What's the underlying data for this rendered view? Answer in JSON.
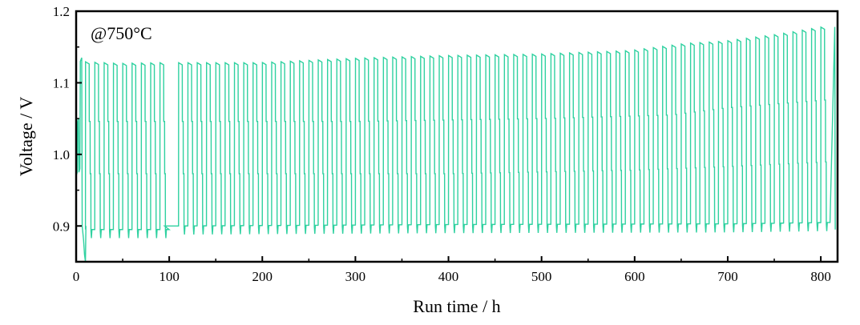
{
  "chart_data": {
    "type": "line",
    "title": "",
    "xlabel": "Run time / h",
    "ylabel": "Voltage / V",
    "annotation": "@750°C",
    "xlim": [
      0,
      818
    ],
    "ylim": [
      0.85,
      1.2
    ],
    "xticks": [
      0,
      100,
      200,
      300,
      400,
      500,
      600,
      700,
      800
    ],
    "yticks": [
      0.9,
      1.0,
      1.1,
      1.2
    ],
    "ytick_labels": [
      "0.9",
      "1.0",
      "1.1",
      "1.2"
    ],
    "grid": false,
    "legend": "none",
    "color": "#2fd1a0",
    "cycle_period_h": 10,
    "series": [
      {
        "description_upper": "electrolysis plateau (high voltage)",
        "upper_x": [
          5,
          50,
          95,
          110,
          200,
          300,
          400,
          500,
          600,
          630,
          660,
          700,
          760,
          815
        ],
        "upper_y": [
          1.13,
          1.127,
          1.128,
          1.128,
          1.128,
          1.134,
          1.138,
          1.14,
          1.145,
          1.15,
          1.155,
          1.158,
          1.168,
          1.18
        ],
        "mid_high_x": [
          10,
          100,
          110,
          300,
          500,
          640,
          700,
          815
        ],
        "mid_high_y": [
          1.046,
          1.046,
          1.046,
          1.046,
          1.05,
          1.055,
          1.065,
          1.077
        ],
        "mid_low_x": [
          10,
          100,
          110,
          400,
          600,
          700,
          815
        ],
        "mid_low_y": [
          0.973,
          0.973,
          0.973,
          0.973,
          0.978,
          0.983,
          0.99
        ],
        "lower_x": [
          10,
          100,
          110,
          400,
          700,
          815
        ],
        "lower_y": [
          0.895,
          0.895,
          0.9,
          0.902,
          0.903,
          0.905
        ],
        "flat_segment": {
          "x_start": 95,
          "x_end": 110,
          "y": 0.9
        }
      }
    ]
  }
}
